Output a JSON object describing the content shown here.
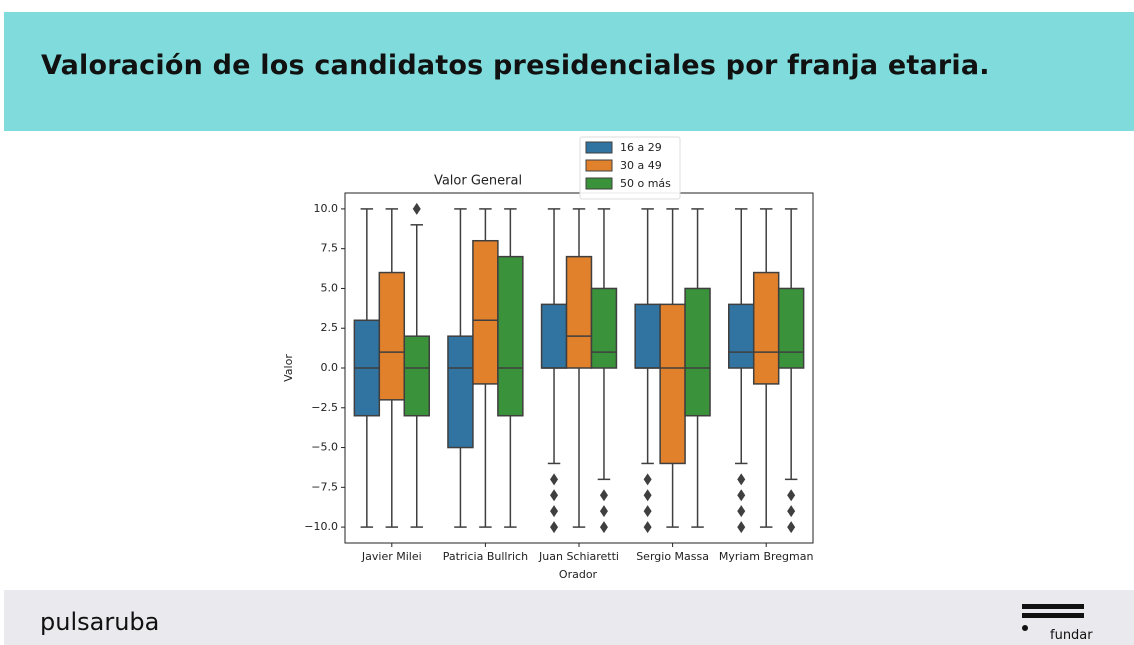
{
  "header": {
    "title": "Valoración de los candidatos presidenciales por franja etaria."
  },
  "footer": {
    "left_logo": "pulsaruba",
    "right_logo": "fundar"
  },
  "chart_data": {
    "type": "box",
    "title": "Valor General",
    "x_label": "Orador",
    "y_label": "Valor",
    "categories": [
      "Javier Milei",
      "Patricia Bullrich",
      "Juan Schiaretti",
      "Sergio Massa",
      "Myriam Bregman"
    ],
    "ylim": [
      -11,
      11
    ],
    "yticks": [
      {
        "value": -10,
        "label": "−10.0"
      },
      {
        "value": -7.5,
        "label": "−7.5"
      },
      {
        "value": -5,
        "label": "−5.0"
      },
      {
        "value": -2.5,
        "label": "−2.5"
      },
      {
        "value": 0,
        "label": "0.0"
      },
      {
        "value": 2.5,
        "label": "2.5"
      },
      {
        "value": 5,
        "label": "5.0"
      },
      {
        "value": 7.5,
        "label": "7.5"
      },
      {
        "value": 10,
        "label": "10.0"
      }
    ],
    "legend": "upper center",
    "series": [
      {
        "name": "16 a 29",
        "color": "#3274a1",
        "boxes": [
          {
            "whislo": -10,
            "q1": -3,
            "med": 0,
            "q3": 3,
            "whishi": 10,
            "fliers": []
          },
          {
            "whislo": -10,
            "q1": -5,
            "med": 0,
            "q3": 2,
            "whishi": 10,
            "fliers": []
          },
          {
            "whislo": -6,
            "q1": 0,
            "med": 0,
            "q3": 4,
            "whishi": 10,
            "fliers": [
              -7,
              -8,
              -9,
              -10
            ]
          },
          {
            "whislo": -6,
            "q1": 0,
            "med": 0,
            "q3": 4,
            "whishi": 10,
            "fliers": [
              -7,
              -8,
              -9,
              -10
            ]
          },
          {
            "whislo": -6,
            "q1": 0,
            "med": 1,
            "q3": 4,
            "whishi": 10,
            "fliers": [
              -7,
              -8,
              -9,
              -10
            ]
          }
        ]
      },
      {
        "name": "30 a 49",
        "color": "#e1812c",
        "boxes": [
          {
            "whislo": -10,
            "q1": -2,
            "med": 1,
            "q3": 6,
            "whishi": 10,
            "fliers": []
          },
          {
            "whislo": -10,
            "q1": -1,
            "med": 3,
            "q3": 8,
            "whishi": 10,
            "fliers": []
          },
          {
            "whislo": -10,
            "q1": 0,
            "med": 2,
            "q3": 7,
            "whishi": 10,
            "fliers": []
          },
          {
            "whislo": -10,
            "q1": -6,
            "med": 0,
            "q3": 4,
            "whishi": 10,
            "fliers": []
          },
          {
            "whislo": -10,
            "q1": -1,
            "med": 1,
            "q3": 6,
            "whishi": 10,
            "fliers": []
          }
        ]
      },
      {
        "name": "50 o más",
        "color": "#3a923a",
        "boxes": [
          {
            "whislo": -10,
            "q1": -3,
            "med": 0,
            "q3": 2,
            "whishi": 9,
            "fliers": [
              10
            ]
          },
          {
            "whislo": -10,
            "q1": -3,
            "med": 0,
            "q3": 7,
            "whishi": 10,
            "fliers": []
          },
          {
            "whislo": -7,
            "q1": 0,
            "med": 1,
            "q3": 5,
            "whishi": 10,
            "fliers": [
              -8,
              -9,
              -10
            ]
          },
          {
            "whislo": -10,
            "q1": -3,
            "med": 0,
            "q3": 5,
            "whishi": 10,
            "fliers": []
          },
          {
            "whislo": -7,
            "q1": 0,
            "med": 1,
            "q3": 5,
            "whishi": 10,
            "fliers": [
              -8,
              -9,
              -10
            ]
          }
        ]
      }
    ]
  }
}
